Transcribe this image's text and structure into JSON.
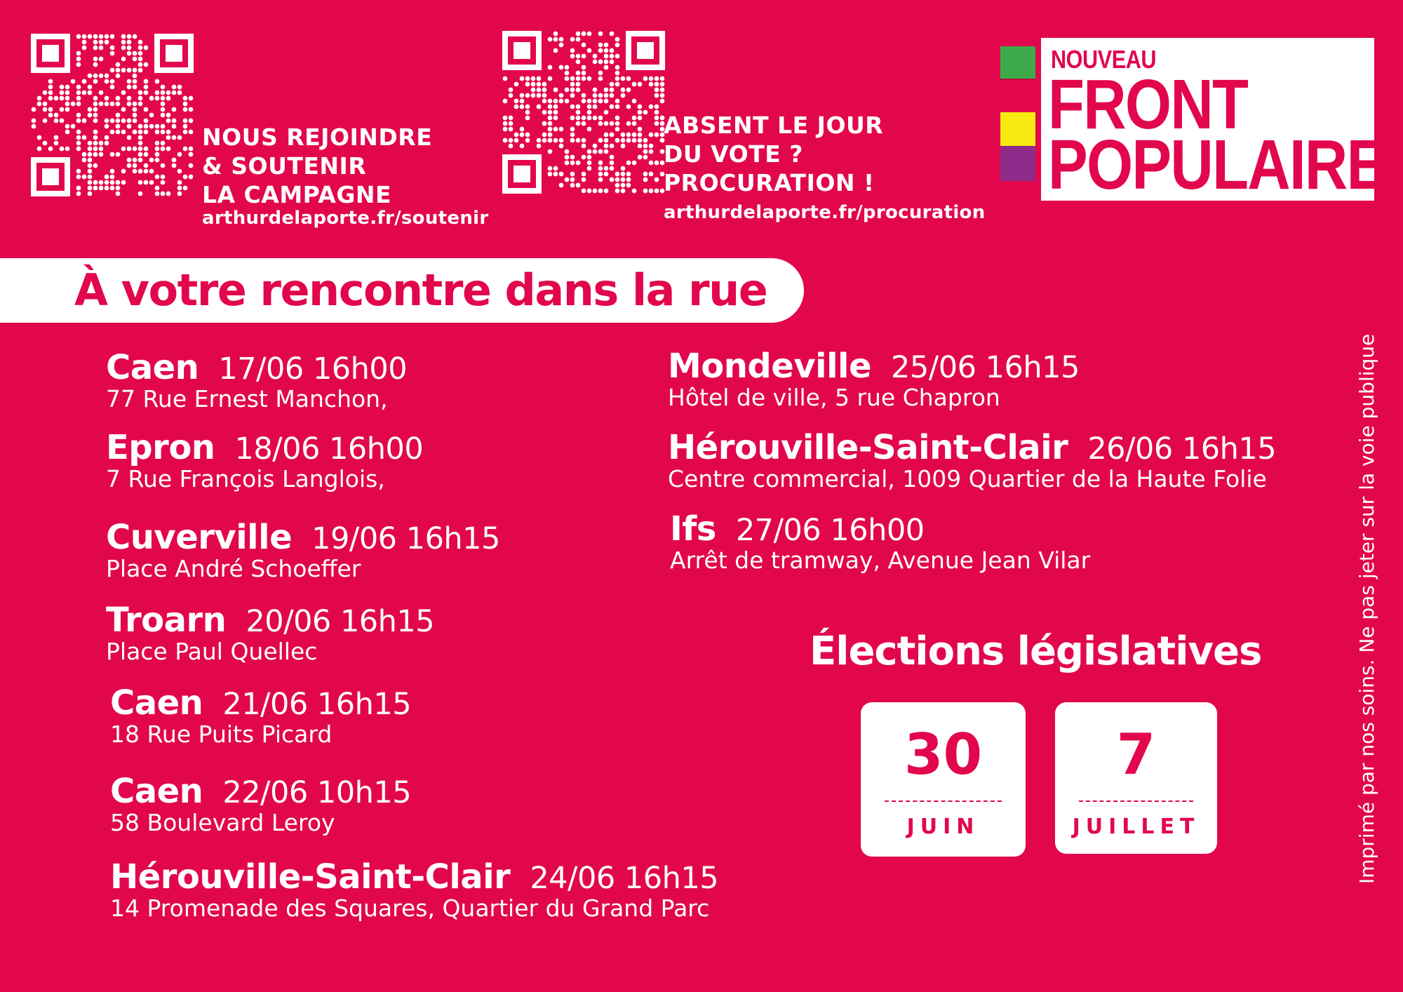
{
  "colors": {
    "background": "#e2074c",
    "text": "#ffffff",
    "logo_green": "#3daa4a",
    "logo_red": "#e2074c",
    "logo_yellow": "#f6ea10",
    "logo_purple": "#8e2a8a"
  },
  "cta_left": {
    "lines": [
      "NOUS REJOINDRE",
      "& SOUTENIR",
      "LA CAMPAGNE"
    ],
    "url": "arthurdelaporte.fr/soutenir",
    "icon": "qr-code-icon"
  },
  "cta_middle": {
    "lines": [
      "ABSENT LE JOUR",
      "DU VOTE ?",
      "PROCURATION !"
    ],
    "url": "arthurdelaporte.fr/procuration",
    "icon": "qr-code-icon"
  },
  "logo": {
    "small": "NOUVEAU",
    "line1": "FRONT",
    "line2": "POPULAIRE"
  },
  "banner_title": "À votre rencontre dans la rue",
  "events_left": [
    {
      "city": "Caen",
      "date": "17/06 16h00",
      "address": "77 Rue Ernest Manchon,"
    },
    {
      "city": "Epron",
      "date": "18/06 16h00",
      "address": "7 Rue François Langlois,"
    },
    {
      "city": "Cuverville",
      "date": "19/06 16h15",
      "address": "Place André Schoeffer"
    },
    {
      "city": "Troarn",
      "date": "20/06 16h15",
      "address": "Place Paul Quellec"
    },
    {
      "city": "Caen",
      "date": "21/06 16h15",
      "address": "18 Rue Puits Picard"
    },
    {
      "city": "Caen",
      "date": "22/06 10h15",
      "address": "58 Boulevard Leroy"
    },
    {
      "city": "Hérouville-Saint-Clair",
      "date": "24/06 16h15",
      "address": "14 Promenade des Squares, Quartier du Grand Parc"
    }
  ],
  "events_right": [
    {
      "city": "Mondeville",
      "date": "25/06 16h15",
      "address": "Hôtel de ville, 5 rue Chapron"
    },
    {
      "city": "Hérouville-Saint-Clair",
      "date": "26/06 16h15",
      "address": "Centre commercial, 1009 Quartier de la Haute Folie"
    },
    {
      "city": "Ifs",
      "date": "27/06 16h00",
      "address": "Arrêt de tramway, Avenue Jean Vilar"
    }
  ],
  "elections": {
    "title": "Élections législatives",
    "dates": [
      {
        "day": "30",
        "month": "JUIN"
      },
      {
        "day": "7",
        "month": "JUILLET"
      }
    ]
  },
  "side_note": "Imprimé par nos soins. Ne pas jeter sur la voie publique"
}
